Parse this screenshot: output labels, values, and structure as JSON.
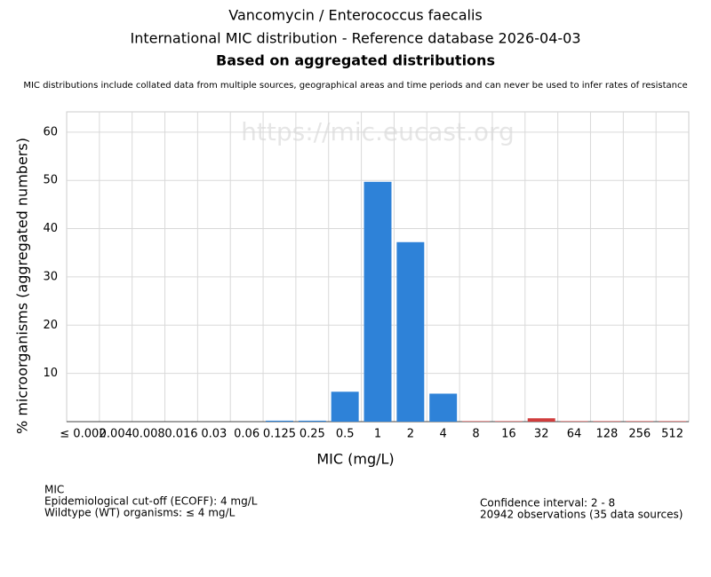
{
  "chart_data": {
    "type": "bar",
    "title": "Vancomycin / Enterococcus faecalis",
    "subtitle": "International MIC distribution - Reference database 2026-04-03",
    "subtitle2": "Based on aggregated distributions",
    "note": "MIC distributions include collated data from multiple sources, geographical areas and time periods and can never be used to infer rates of resistance",
    "watermark": "https://mic.eucast.org",
    "x_label": "MIC (mg/L)",
    "y_label": "% microorganisms (aggregated numbers)",
    "categories": [
      "≤ 0.002",
      "0.004",
      "0.008",
      "0.016",
      "0.03",
      "0.06",
      "0.125",
      "0.25",
      "0.5",
      "1",
      "2",
      "4",
      "8",
      "16",
      "32",
      "64",
      "128",
      "256",
      "512"
    ],
    "values": [
      0,
      0,
      0,
      0,
      0,
      0,
      0.2,
      0.2,
      6.2,
      49.7,
      37.2,
      5.8,
      0.1,
      0.1,
      0.7,
      0.1,
      0.1,
      0.1,
      0.1
    ],
    "colors": [
      "#2e82d8",
      "#2e82d8",
      "#2e82d8",
      "#2e82d8",
      "#2e82d8",
      "#2e82d8",
      "#2e82d8",
      "#2e82d8",
      "#2e82d8",
      "#2e82d8",
      "#2e82d8",
      "#2e82d8",
      "#d03c3c",
      "#d03c3c",
      "#d03c3c",
      "#d03c3c",
      "#d03c3c",
      "#d03c3c",
      "#d03c3c"
    ],
    "ylim": [
      0,
      64.2
    ],
    "yticks": [
      10,
      20,
      30,
      40,
      50,
      60
    ],
    "grid": true,
    "footer_left": [
      "MIC",
      "Epidemiological cut-off (ECOFF): 4 mg/L",
      "Wildtype (WT) organisms: ≤ 4 mg/L"
    ],
    "footer_right": [
      "Confidence interval: 2 - 8",
      "20942 observations (35 data sources)"
    ]
  }
}
